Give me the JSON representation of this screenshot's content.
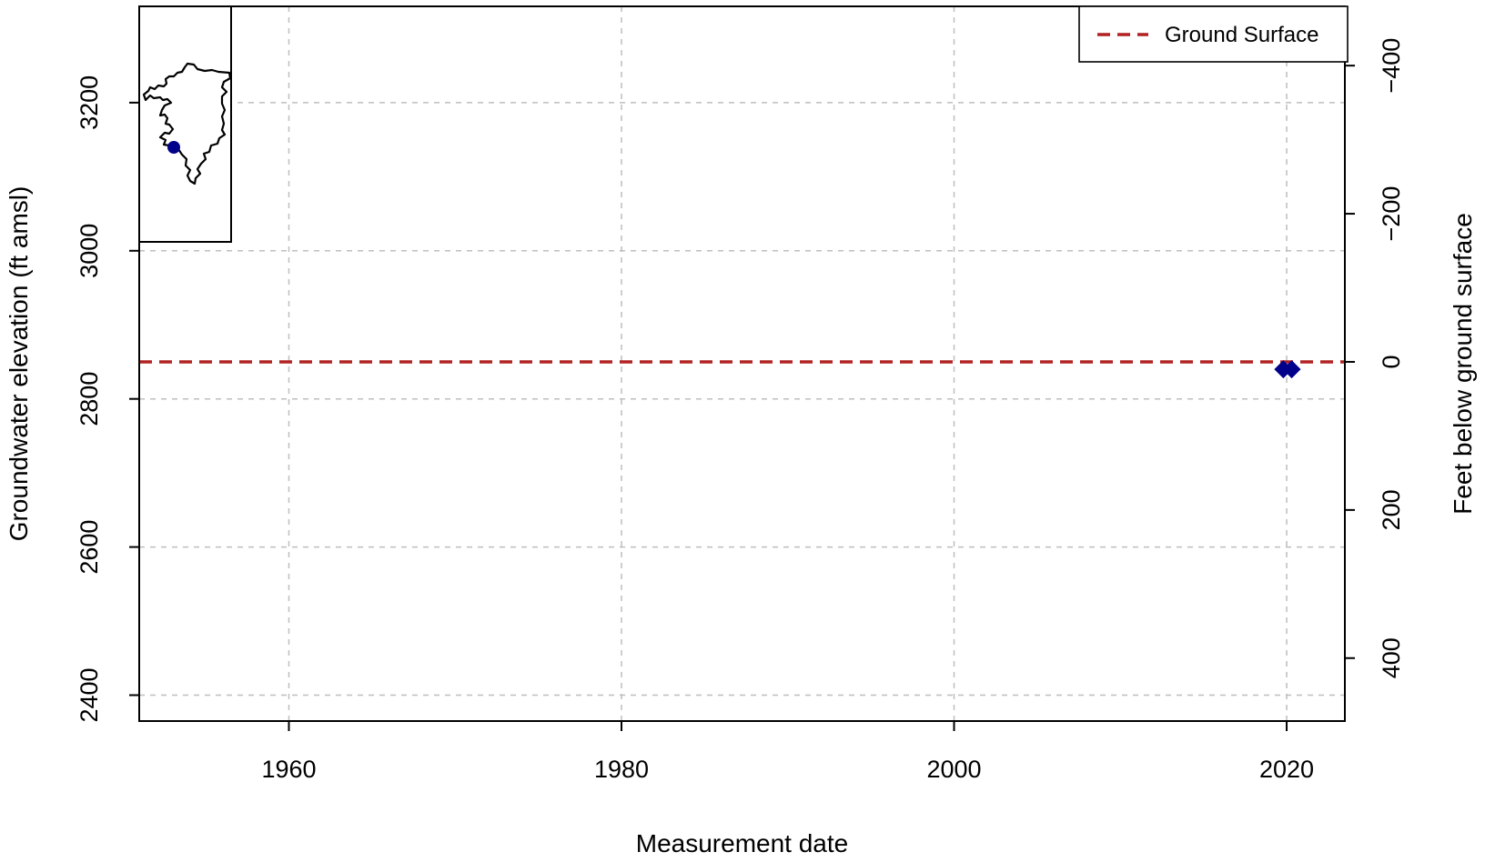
{
  "chart_data": {
    "type": "scatter",
    "xlabel": "Measurement date",
    "ylabel": "Groundwater elevation (ft amsl)",
    "y2label": "Feet below ground surface",
    "xlim": [
      1951,
      2023.5
    ],
    "ylim": [
      2365,
      3330
    ],
    "y2_reversed": true,
    "ground_surface_elevation": 2850,
    "x_ticks": [
      1960,
      1980,
      2000,
      2020
    ],
    "y_ticks": [
      2400,
      2600,
      2800,
      3000,
      3200
    ],
    "y2_ticks": [
      400,
      200,
      0,
      -200,
      -400
    ],
    "y2_tick_labels": [
      "400",
      "200",
      "0",
      "−200",
      "−400"
    ],
    "grid": true,
    "legend": {
      "placement": "top-right",
      "entries": [
        {
          "label": "Ground Surface",
          "style": "dashed-line",
          "color": "#b22222"
        }
      ]
    },
    "series": [
      {
        "marker": "diamond",
        "color": "#00008b",
        "points": [
          {
            "x": 2019.8,
            "y": 2840
          },
          {
            "x": 2020.3,
            "y": 2840
          }
        ]
      }
    ],
    "inset_map": {
      "marker_color": "#00008b"
    }
  },
  "colors": {
    "grid": "#bebebe",
    "ground_surface": "#b22222",
    "points": "#00008b",
    "axes": "#000000"
  }
}
